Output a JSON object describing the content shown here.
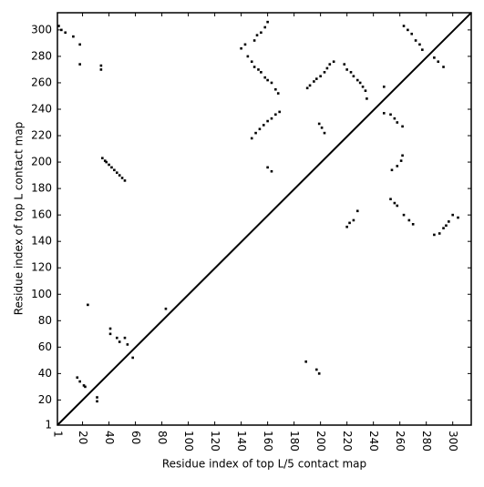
{
  "chart_data": {
    "type": "scatter",
    "xlabel": "Residue index of top L/5 contact map",
    "ylabel": "Residue index of top L contact map",
    "xlim": [
      1,
      314
    ],
    "ylim": [
      1,
      313
    ],
    "xticks": [
      1,
      20,
      40,
      60,
      80,
      100,
      120,
      140,
      160,
      180,
      200,
      220,
      240,
      260,
      280,
      300
    ],
    "yticks": [
      1,
      20,
      40,
      60,
      80,
      100,
      120,
      140,
      160,
      180,
      200,
      220,
      240,
      260,
      280,
      300
    ],
    "color": "#000000",
    "x": [
      2,
      4,
      7,
      13,
      18,
      18,
      34,
      34,
      35,
      37,
      38,
      40,
      42,
      44,
      46,
      48,
      50,
      52,
      24,
      41,
      41,
      46,
      48,
      52,
      54,
      58,
      83,
      140,
      143,
      145,
      148,
      150,
      153,
      155,
      158,
      160,
      163,
      166,
      168,
      150,
      152,
      155,
      158,
      160,
      148,
      151,
      154,
      157,
      160,
      163,
      166,
      169,
      160,
      163,
      190,
      192,
      195,
      197,
      200,
      203,
      205,
      207,
      210,
      218,
      220,
      223,
      225,
      228,
      230,
      232,
      234,
      235,
      248,
      263,
      266,
      269,
      272,
      275,
      277,
      286,
      289,
      293,
      16,
      18,
      21,
      22,
      31,
      31,
      189,
      197,
      199,
      199,
      201,
      203,
      248,
      253,
      256,
      258,
      262,
      262,
      261,
      258,
      254,
      253,
      256,
      258,
      220,
      222,
      225,
      228,
      263,
      267,
      270,
      286,
      290,
      293,
      295,
      297,
      300,
      304
    ],
    "y": [
      303,
      300,
      298,
      295,
      289,
      274,
      273,
      270,
      203,
      201,
      200,
      198,
      196,
      194,
      192,
      190,
      188,
      186,
      92,
      74,
      70,
      67,
      64,
      67,
      62,
      52,
      89,
      286,
      289,
      280,
      276,
      272,
      270,
      268,
      264,
      262,
      260,
      255,
      252,
      292,
      296,
      298,
      302,
      306,
      218,
      222,
      225,
      228,
      231,
      233,
      236,
      238,
      196,
      193,
      256,
      258,
      261,
      263,
      265,
      268,
      271,
      274,
      276,
      274,
      270,
      268,
      265,
      262,
      260,
      257,
      254,
      248,
      257,
      303,
      300,
      297,
      292,
      289,
      285,
      279,
      276,
      272,
      37,
      34,
      31,
      30,
      22,
      19,
      49,
      43,
      40,
      229,
      226,
      222,
      237,
      236,
      233,
      230,
      227,
      205,
      201,
      197,
      194,
      172,
      169,
      167,
      151,
      154,
      156,
      163,
      160,
      156,
      153,
      145,
      146,
      150,
      152,
      155,
      160,
      158
    ]
  }
}
